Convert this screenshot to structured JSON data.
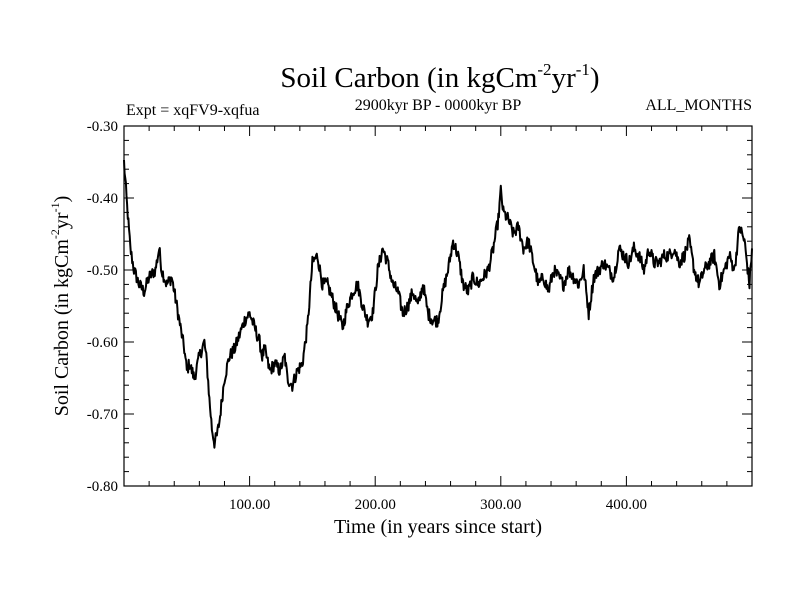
{
  "chart_data": {
    "type": "line",
    "title": "Soil Carbon (in kgCm",
    "title_sup1": "-2",
    "title_mid": "yr",
    "title_sup2": "-1",
    "title_end": ")",
    "subtitle_left": "Expt = xqFV9-xqfua",
    "subtitle_center": "2900kyr BP - 0000kyr BP",
    "subtitle_right": "ALL_MONTHS",
    "xlabel": "Time (in years since start)",
    "ylabel": "Soil Carbon (in kgCm",
    "ylabel_sup1": "-2",
    "ylabel_mid": "yr",
    "ylabel_sup2": "-1",
    "ylabel_end": ")",
    "xlim": [
      0,
      500
    ],
    "ylim": [
      -0.8,
      -0.3
    ],
    "x_ticks": [
      100,
      200,
      300,
      400
    ],
    "x_tick_labels": [
      "100.00",
      "200.00",
      "300.00",
      "400.00"
    ],
    "y_ticks": [
      -0.3,
      -0.4,
      -0.5,
      -0.6,
      -0.7,
      -0.8
    ],
    "y_tick_labels": [
      "-0.30",
      "-0.40",
      "-0.50",
      "-0.60",
      "-0.70",
      "-0.80"
    ],
    "series": [
      {
        "name": "Soil Carbon",
        "color": "#000000",
        "x": [
          0,
          2,
          5,
          8,
          12,
          16,
          20,
          25,
          28,
          30,
          34,
          38,
          42,
          45,
          48,
          50,
          52,
          56,
          60,
          64,
          66,
          68,
          70,
          72,
          74,
          76,
          78,
          80,
          84,
          88,
          92,
          96,
          100,
          104,
          108,
          110,
          112,
          116,
          120,
          124,
          128,
          130,
          134,
          138,
          142,
          146,
          150,
          154,
          158,
          162,
          166,
          170,
          174,
          178,
          182,
          186,
          190,
          194,
          198,
          202,
          206,
          210,
          214,
          218,
          222,
          226,
          230,
          234,
          238,
          242,
          246,
          250,
          254,
          258,
          262,
          266,
          270,
          274,
          278,
          282,
          286,
          290,
          294,
          298,
          300,
          302,
          306,
          310,
          314,
          318,
          322,
          326,
          330,
          334,
          338,
          342,
          346,
          350,
          354,
          358,
          362,
          366,
          370,
          374,
          378,
          382,
          386,
          390,
          394,
          398,
          402,
          406,
          410,
          414,
          418,
          422,
          426,
          430,
          434,
          438,
          442,
          446,
          450,
          454,
          458,
          462,
          466,
          470,
          474,
          478,
          482,
          486,
          490,
          494,
          498,
          500
        ],
        "values": [
          -0.35,
          -0.4,
          -0.47,
          -0.5,
          -0.52,
          -0.53,
          -0.51,
          -0.5,
          -0.47,
          -0.5,
          -0.52,
          -0.51,
          -0.55,
          -0.58,
          -0.61,
          -0.64,
          -0.63,
          -0.65,
          -0.62,
          -0.6,
          -0.63,
          -0.68,
          -0.72,
          -0.74,
          -0.73,
          -0.71,
          -0.68,
          -0.65,
          -0.62,
          -0.61,
          -0.59,
          -0.57,
          -0.56,
          -0.58,
          -0.6,
          -0.62,
          -0.61,
          -0.64,
          -0.63,
          -0.64,
          -0.62,
          -0.65,
          -0.66,
          -0.64,
          -0.63,
          -0.58,
          -0.49,
          -0.48,
          -0.52,
          -0.52,
          -0.54,
          -0.56,
          -0.58,
          -0.55,
          -0.53,
          -0.52,
          -0.55,
          -0.57,
          -0.56,
          -0.5,
          -0.47,
          -0.49,
          -0.52,
          -0.53,
          -0.56,
          -0.55,
          -0.53,
          -0.55,
          -0.52,
          -0.56,
          -0.57,
          -0.57,
          -0.53,
          -0.5,
          -0.46,
          -0.48,
          -0.52,
          -0.53,
          -0.51,
          -0.52,
          -0.51,
          -0.5,
          -0.47,
          -0.43,
          -0.39,
          -0.42,
          -0.43,
          -0.45,
          -0.44,
          -0.47,
          -0.46,
          -0.49,
          -0.52,
          -0.51,
          -0.53,
          -0.5,
          -0.51,
          -0.52,
          -0.5,
          -0.51,
          -0.52,
          -0.5,
          -0.56,
          -0.51,
          -0.5,
          -0.49,
          -0.5,
          -0.51,
          -0.47,
          -0.48,
          -0.49,
          -0.47,
          -0.48,
          -0.5,
          -0.47,
          -0.49,
          -0.49,
          -0.48,
          -0.48,
          -0.47,
          -0.49,
          -0.48,
          -0.46,
          -0.5,
          -0.52,
          -0.5,
          -0.49,
          -0.48,
          -0.52,
          -0.5,
          -0.48,
          -0.5,
          -0.44,
          -0.46,
          -0.52,
          -0.47
        ]
      }
    ]
  }
}
